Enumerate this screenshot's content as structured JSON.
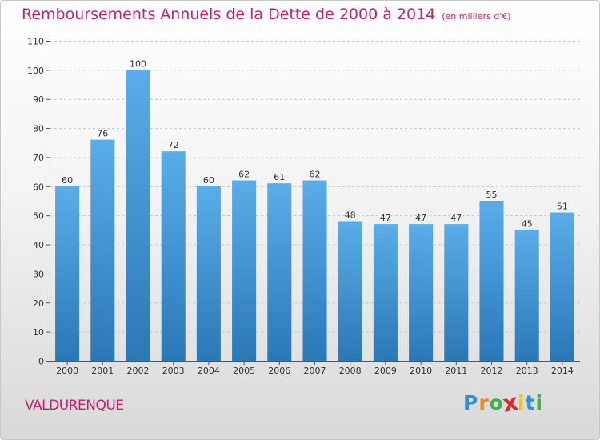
{
  "header": {
    "title": "Remboursements Annuels de la Dette de 2000 à 2014",
    "unit": "(en milliers d'€)"
  },
  "footer": {
    "commune": "VALDURENQUE",
    "brand": [
      "P",
      "r",
      "o",
      "x",
      "i",
      "t",
      "i"
    ],
    "brand_colors": [
      "#2f8fd8",
      "#f08a1c",
      "#3db34a",
      "#e2262b",
      "#f4c21b",
      "#2f8fd8",
      "#3db34a"
    ]
  },
  "colors": {
    "bar_light": "#5aade8",
    "bar_dark": "#2a78b6",
    "title": "#c81e6e"
  },
  "chart_data": {
    "type": "bar",
    "title": "Remboursements Annuels de la Dette de 2000 à 2014",
    "xlabel": "",
    "ylabel": "",
    "categories": [
      "2000",
      "2001",
      "2002",
      "2003",
      "2004",
      "2005",
      "2006",
      "2007",
      "2008",
      "2009",
      "2010",
      "2011",
      "2012",
      "2013",
      "2014"
    ],
    "values": [
      60,
      76,
      100,
      72,
      60,
      62,
      61,
      62,
      48,
      47,
      47,
      47,
      55,
      45,
      51
    ],
    "ylim": [
      0,
      110
    ],
    "yticks": [
      0,
      10,
      20,
      30,
      40,
      50,
      60,
      70,
      80,
      90,
      100,
      110
    ],
    "grid": true
  }
}
